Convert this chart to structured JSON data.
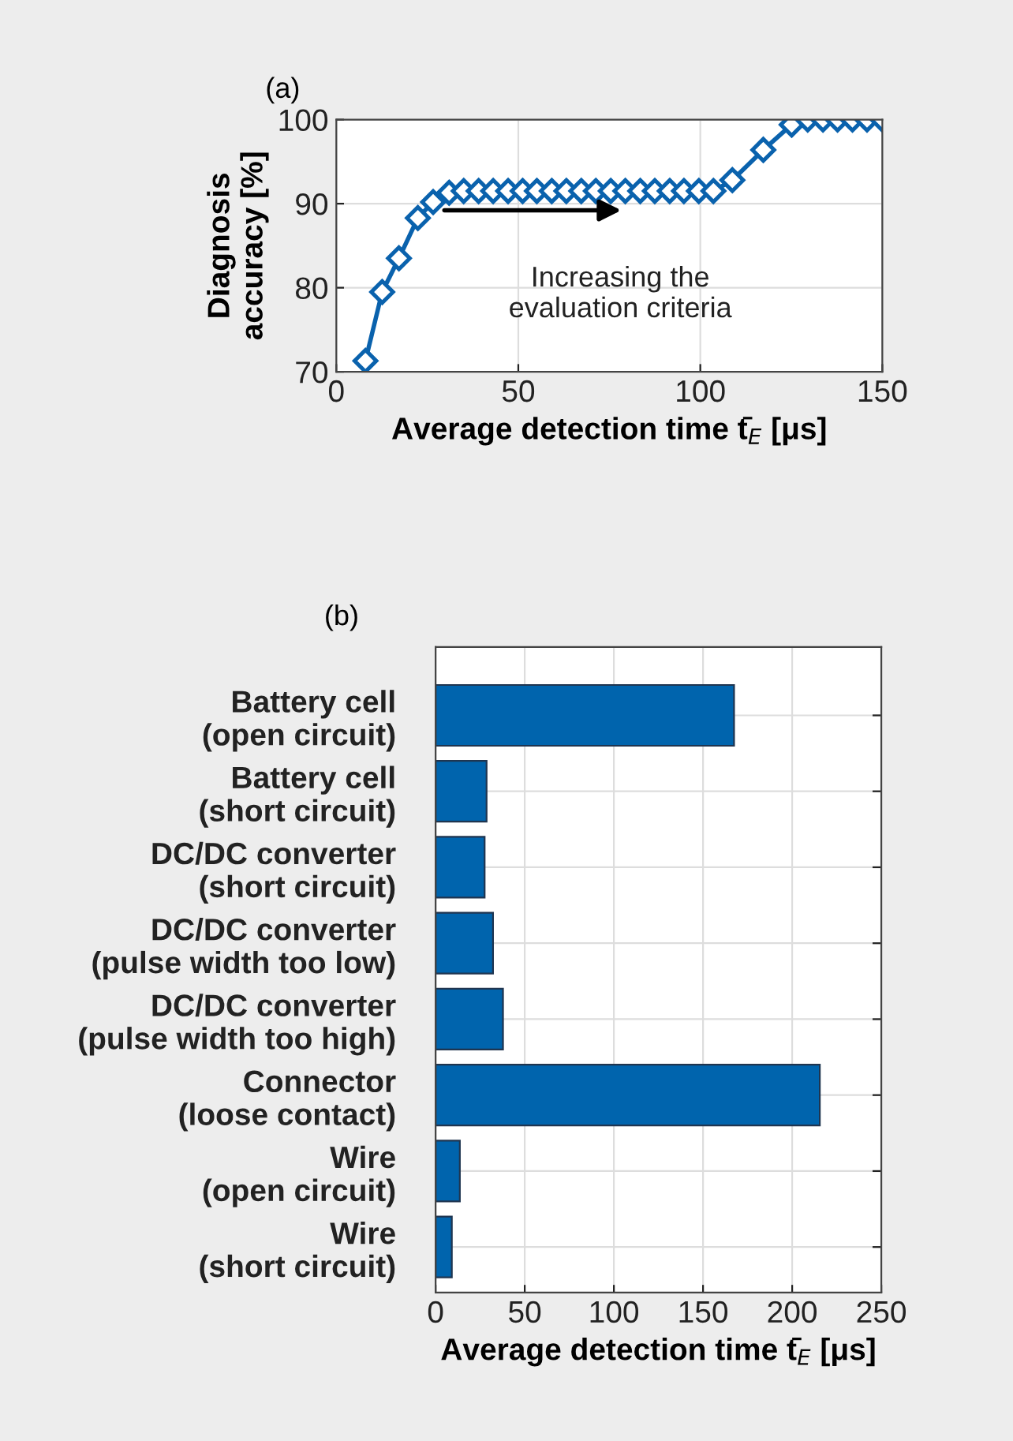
{
  "chart_data": [
    {
      "type": "line",
      "title": "(a)",
      "xlabel": "Average detection time t̄$_{E}$ [μs]",
      "ylabel": "Diagnosis\naccuracy [%]",
      "x": [
        8.0,
        12.6,
        17.2,
        22.4,
        26.6,
        31.0,
        35.0,
        39.1,
        43.1,
        47.2,
        51.2,
        55.1,
        59.2,
        63.2,
        67.3,
        71.3,
        75.4,
        79.4,
        83.5,
        87.5,
        91.6,
        95.5,
        99.6,
        103.6,
        108.8,
        117.3,
        125.1,
        129.5,
        133.7,
        137.7,
        141.8,
        145.8,
        150.0
      ],
      "series": [
        {
          "color": "#0a62ad",
          "values": [
            71.3,
            79.5,
            83.5,
            88.3,
            90.2,
            91.3,
            91.5,
            91.5,
            91.5,
            91.5,
            91.5,
            91.5,
            91.5,
            91.5,
            91.5,
            91.5,
            91.5,
            91.5,
            91.5,
            91.5,
            91.5,
            91.5,
            91.5,
            91.5,
            92.8,
            96.4,
            99.4,
            100,
            100,
            100,
            100,
            100,
            100
          ]
        }
      ],
      "marker": "diamond",
      "line_style": "solid",
      "xlim": [
        0,
        150
      ],
      "xticks": [
        0,
        50,
        100,
        150
      ],
      "ylim": [
        70,
        100
      ],
      "yticks": [
        70,
        80,
        90,
        100
      ],
      "grid": true,
      "annotations": [
        "Increasing the\nevaluation criteria"
      ]
    },
    {
      "type": "bar",
      "title": "(b)",
      "orientation": "horizontal",
      "xlabel": "Average detection time t̄$_{E}$ [μs]",
      "categories": [
        "Battery cell\n(open circuit)",
        "Battery cell\n(short circuit)",
        "DC/DC converter\n(short circuit)",
        "DC/DC converter\n(pulse width too low)",
        "DC/DC converter\n(pulse width too high)",
        "Connector\n(loose contact)",
        "Wire\n(open circuit)",
        "Wire\n(short circuit)"
      ],
      "series": [
        {
          "color": "#0064ad",
          "values": [
            167.4,
            28.6,
            27.5,
            32.2,
            37.8,
            215.5,
            13.6,
            9.1
          ]
        }
      ],
      "xlim": [
        0,
        250
      ],
      "xticks": [
        0,
        50,
        100,
        150,
        200,
        250
      ],
      "grid": true
    }
  ]
}
